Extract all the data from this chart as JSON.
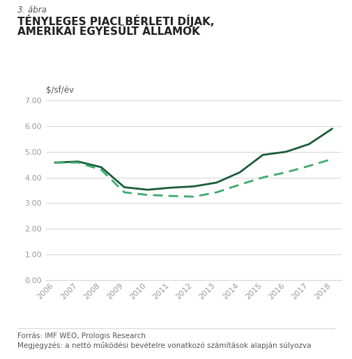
{
  "subtitle": "3. ábra",
  "title_line1": "TÉNYLEGES PIACI BÉRLETI DÍJAK,",
  "title_line2": "AMERIKAI EGYESÜLT ÁLLAMOK",
  "ylabel": "$/sf/év",
  "years": [
    2006,
    2007,
    2008,
    2009,
    2010,
    2011,
    2012,
    2013,
    2014,
    2015,
    2016,
    2017,
    2018
  ],
  "nominal": [
    4.58,
    4.62,
    4.4,
    3.62,
    3.52,
    3.6,
    3.65,
    3.8,
    4.2,
    4.88,
    5.0,
    5.3,
    5.9
  ],
  "real": [
    4.58,
    4.58,
    4.3,
    3.42,
    3.32,
    3.28,
    3.25,
    3.42,
    3.72,
    4.0,
    4.2,
    4.45,
    4.72
  ],
  "nominal_color": "#1a5c38",
  "real_color": "#3daa6e",
  "grid_color": "#d9d9d9",
  "background_color": "#ffffff",
  "ylim": [
    0.0,
    7.0
  ],
  "yticks": [
    0.0,
    1.0,
    2.0,
    3.0,
    4.0,
    5.0,
    6.0,
    7.0
  ],
  "footnote1": "Forrás: IMF WEO, Prologis Research",
  "footnote2": "Megjegyzés: a nettó működési bevételre vonatkozó számítások alapján súlyozva",
  "line_width": 2.0,
  "text_color": "#555555",
  "subtitle_color": "#555555",
  "axis_label_color": "#999999"
}
